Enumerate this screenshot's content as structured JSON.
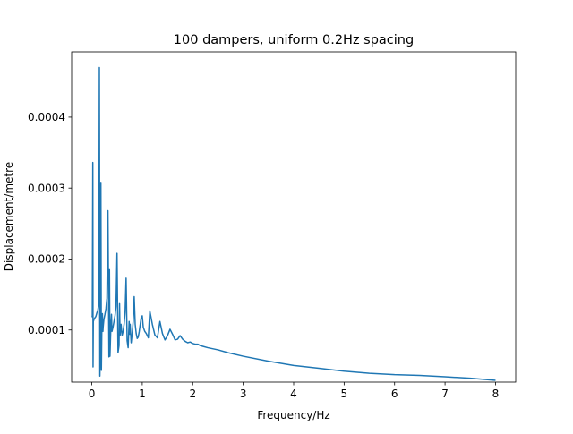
{
  "chart_data": {
    "type": "line",
    "title": "100 dampers, uniform 0.2Hz spacing",
    "xlabel": "Frequency/Hz",
    "ylabel": "Displacement/metre",
    "xlim": [
      -0.4,
      8.4
    ],
    "ylim": [
      2.65e-05,
      0.000492
    ],
    "xticks": [
      0,
      1,
      2,
      3,
      4,
      5,
      6,
      7,
      8
    ],
    "xtick_labels": [
      "0",
      "1",
      "2",
      "3",
      "4",
      "5",
      "6",
      "7",
      "8"
    ],
    "yticks": [
      0.0001,
      0.0002,
      0.0003,
      0.0004
    ],
    "ytick_labels": [
      "0.0001",
      "0.0002",
      "0.0003",
      "0.0004"
    ],
    "grid": false,
    "line_color": "#1f77b4",
    "series": [
      {
        "x": [
          0.0,
          0.01,
          0.02,
          0.025,
          0.03,
          0.05,
          0.08,
          0.1,
          0.12,
          0.14,
          0.15,
          0.16,
          0.175,
          0.18,
          0.19,
          0.2,
          0.21,
          0.22,
          0.225,
          0.23,
          0.24,
          0.26,
          0.28,
          0.3,
          0.32,
          0.34,
          0.35,
          0.36,
          0.38,
          0.39,
          0.4,
          0.42,
          0.44,
          0.46,
          0.48,
          0.5,
          0.52,
          0.54,
          0.55,
          0.56,
          0.58,
          0.6,
          0.62,
          0.64,
          0.66,
          0.68,
          0.7,
          0.72,
          0.74,
          0.75,
          0.76,
          0.78,
          0.8,
          0.82,
          0.84,
          0.86,
          0.88,
          0.9,
          0.92,
          0.94,
          0.96,
          0.98,
          1.0,
          1.02,
          1.05,
          1.08,
          1.12,
          1.15,
          1.2,
          1.25,
          1.3,
          1.35,
          1.4,
          1.45,
          1.5,
          1.55,
          1.6,
          1.65,
          1.7,
          1.75,
          1.8,
          1.85,
          1.9,
          1.95,
          2.0,
          2.05,
          2.1,
          2.15,
          2.2,
          2.3,
          2.5,
          2.7,
          3.0,
          3.5,
          4.0,
          4.5,
          5.0,
          5.5,
          6.0,
          6.5,
          7.0,
          7.5,
          8.0
        ],
        "y": [
          0.000118,
          0.000119,
          0.000336,
          4.8e-05,
          0.000112,
          0.000116,
          0.000119,
          0.000124,
          0.000128,
          0.000138,
          0.00047,
          3.5e-05,
          9.6e-05,
          0.000308,
          4.3e-05,
          0.00011,
          0.000123,
          9.8e-05,
          0.000104,
          0.000108,
          0.000115,
          0.000122,
          0.00013,
          0.000145,
          0.000268,
          6.2e-05,
          0.000185,
          6.3e-05,
          0.00011,
          0.000122,
          9.8e-05,
          0.000104,
          0.000112,
          0.00012,
          0.000133,
          0.000208,
          6.8e-05,
          7.8e-05,
          0.000137,
          9.2e-05,
          0.000108,
          9.2e-05,
          9.8e-05,
          0.000108,
          0.000125,
          0.000173,
          8.5e-05,
          7.5e-05,
          0.000112,
          9.4e-05,
          0.000108,
          8.2e-05,
          9.5e-05,
          0.000112,
          0.000147,
          0.000108,
          9.5e-05,
          8.8e-05,
          9e-05,
          9.8e-05,
          0.000108,
          0.000118,
          0.00012,
          0.000104,
          9.8e-05,
          9.5e-05,
          8.9e-05,
          0.000127,
          0.000108,
          9.3e-05,
          8.9e-05,
          0.000112,
          9.5e-05,
          8.6e-05,
          9.2e-05,
          0.000101,
          9.4e-05,
          8.6e-05,
          8.7e-05,
          9.2e-05,
          8.7e-05,
          8.4e-05,
          8.2e-05,
          8.3e-05,
          8.1e-05,
          8e-05,
          8e-05,
          7.8e-05,
          7.7e-05,
          7.5e-05,
          7.2e-05,
          6.8e-05,
          6.3e-05,
          5.6e-05,
          5e-05,
          4.6e-05,
          4.2e-05,
          3.9e-05,
          3.7e-05,
          3.6e-05,
          3.4e-05,
          3.2e-05,
          2.9e-05
        ]
      }
    ]
  }
}
